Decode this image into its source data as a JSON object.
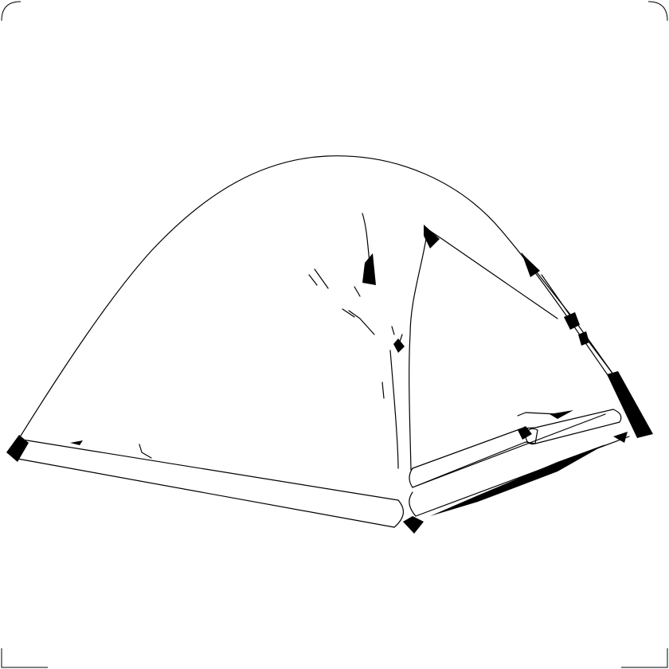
{
  "image": {
    "subject": "tent-line-drawing",
    "background_color": "#ffffff",
    "ink_color": "#000000"
  }
}
